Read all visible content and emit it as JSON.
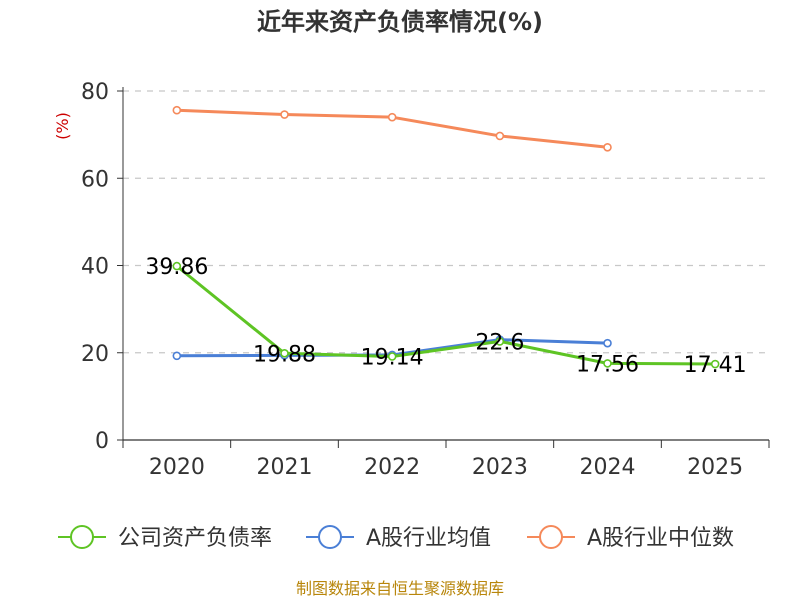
{
  "chart_data": {
    "type": "line",
    "title": "近年来资产负债率情况(%)",
    "ylabel": "(%)",
    "categories": [
      "2020",
      "2021",
      "2022",
      "2023",
      "2024",
      "2025"
    ],
    "ylim": [
      0,
      80
    ],
    "yticks": [
      0,
      20,
      40,
      60,
      80
    ],
    "grid": true,
    "legend_position": "bottom",
    "series": [
      {
        "name": "公司资产负债率",
        "color": "#5ec424",
        "values": [
          39.86,
          19.88,
          19.14,
          22.6,
          17.56,
          17.41
        ],
        "labels": [
          "39.86",
          "19.88",
          "19.14",
          "22.6",
          "17.56",
          "17.41"
        ]
      },
      {
        "name": "A股行业均值",
        "color": "#4a7fd6",
        "values": [
          19.3,
          19.4,
          19.5,
          23.0,
          22.2,
          null
        ]
      },
      {
        "name": "A股行业中位数",
        "color": "#f5895a",
        "values": [
          75.6,
          74.6,
          74.0,
          69.7,
          67.1,
          null
        ]
      }
    ],
    "source": "制图数据来自恒生聚源数据库"
  }
}
